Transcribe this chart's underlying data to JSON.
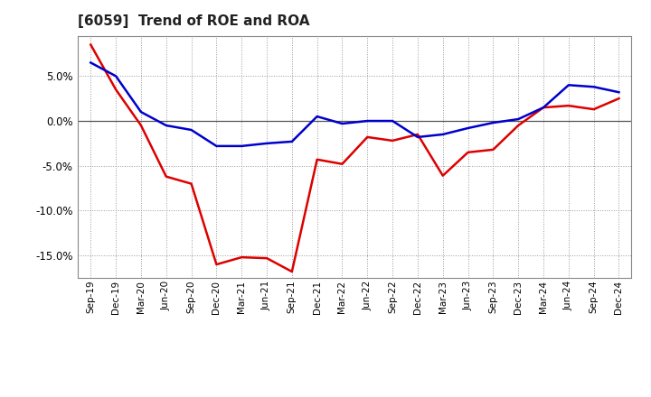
{
  "title": "[6059]  Trend of ROE and ROA",
  "labels": [
    "Sep-19",
    "Dec-19",
    "Mar-20",
    "Jun-20",
    "Sep-20",
    "Dec-20",
    "Mar-21",
    "Jun-21",
    "Sep-21",
    "Dec-21",
    "Mar-22",
    "Jun-22",
    "Sep-22",
    "Dec-22",
    "Mar-23",
    "Jun-23",
    "Sep-23",
    "Dec-23",
    "Mar-24",
    "Jun-24",
    "Sep-24",
    "Dec-24"
  ],
  "ROE": [
    8.5,
    3.5,
    -0.5,
    -6.2,
    -7.0,
    -16.0,
    -15.2,
    -15.3,
    -16.8,
    -4.3,
    -4.8,
    -1.8,
    -2.2,
    -1.5,
    -6.1,
    -3.5,
    -3.2,
    -0.5,
    1.5,
    1.7,
    1.3,
    2.5
  ],
  "ROA": [
    6.5,
    5.0,
    1.0,
    -0.5,
    -1.0,
    -2.8,
    -2.8,
    -2.5,
    -2.3,
    0.5,
    -0.3,
    0.0,
    0.0,
    -1.8,
    -1.5,
    -0.8,
    -0.2,
    0.2,
    1.5,
    4.0,
    3.8,
    3.2
  ],
  "roe_color": "#dd0000",
  "roa_color": "#0000cc",
  "background_color": "#ffffff",
  "grid_color": "#999999",
  "ylim": [
    -17.5,
    9.5
  ],
  "yticks": [
    -15.0,
    -10.0,
    -5.0,
    0.0,
    5.0
  ],
  "line_width": 1.8
}
